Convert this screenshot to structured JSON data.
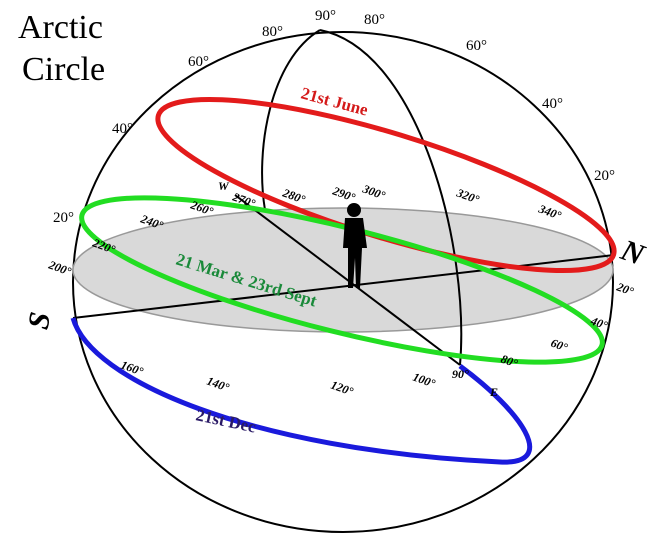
{
  "title": [
    "Arctic",
    "Circle"
  ],
  "altitude_labels": [
    "80°",
    "90°",
    "80°",
    "60°",
    "60°",
    "40°",
    "40°",
    "20°",
    "20°"
  ],
  "sun_paths": [
    "21st June",
    "21 Mar & 23rd Sept",
    "21st Dec"
  ],
  "compass": {
    "north": "N",
    "south": "S",
    "west": "W",
    "east": "E"
  },
  "azimuth_labels": [
    "270°",
    "280°",
    "290°",
    "300°",
    "320°",
    "340°",
    "260°",
    "240°",
    "220°",
    "200°",
    "20°",
    "40°",
    "60°",
    "80°",
    "90°",
    "100°",
    "120°",
    "140°",
    "160°"
  ]
}
